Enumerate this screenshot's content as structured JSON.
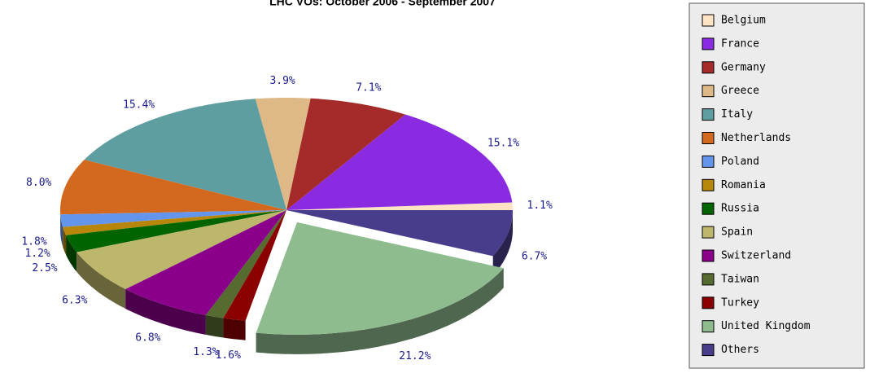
{
  "chart_data": {
    "type": "pie3d",
    "title": "LHC VOs: October 2006 - September 2007",
    "categories": [
      "Belgium",
      "France",
      "Germany",
      "Greece",
      "Italy",
      "Netherlands",
      "Poland",
      "Romania",
      "Russia",
      "Spain",
      "Switzerland",
      "Taiwan",
      "Turkey",
      "United Kingdom",
      "Others"
    ],
    "values": [
      1.1,
      15.1,
      7.1,
      3.9,
      15.4,
      8.0,
      1.8,
      1.2,
      2.5,
      6.3,
      6.8,
      1.3,
      1.6,
      21.2,
      6.7
    ],
    "value_labels": [
      "1.1%",
      "15.1%",
      "7.1%",
      "3.9%",
      "15.4%",
      "8.0%",
      "1.8%",
      "1.2%",
      "2.5%",
      "6.3%",
      "6.8%",
      "1.3%",
      "1.6%",
      "21.2%",
      "6.7%"
    ],
    "colors": [
      "#ffe4c4",
      "#8a2be2",
      "#a52a2a",
      "#deb887",
      "#5f9ea0",
      "#d2691e",
      "#6495ed",
      "#b8860b",
      "#006400",
      "#bdb76b",
      "#8b008b",
      "#556b2f",
      "#8b0000",
      "#8fbc8f",
      "#483d8b"
    ],
    "exploded": [
      "United Kingdom"
    ],
    "legend": "right"
  }
}
